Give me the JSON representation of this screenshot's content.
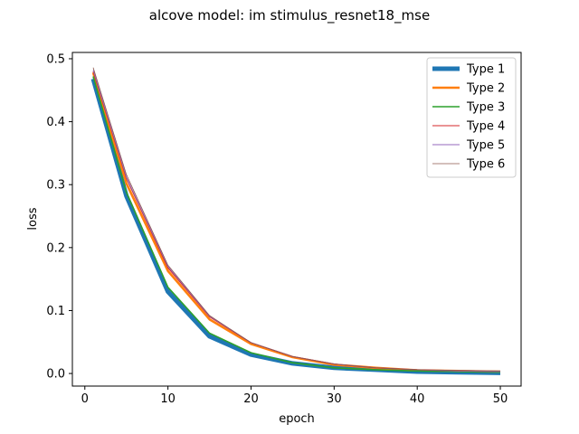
{
  "chart_data": {
    "type": "line",
    "title": "alcove model: im stimulus_resnet18_mse",
    "xlabel": "epoch",
    "ylabel": "loss",
    "xlim": [
      -1.5,
      52.5
    ],
    "ylim": [
      -0.02,
      0.51
    ],
    "xticks": [
      0,
      10,
      20,
      30,
      40,
      50
    ],
    "yticks": [
      0.0,
      0.1,
      0.2,
      0.3,
      0.4,
      0.5
    ],
    "grid": false,
    "legend_position": "top-right",
    "x": [
      1,
      5,
      10,
      15,
      20,
      25,
      30,
      35,
      40,
      45,
      50
    ],
    "series": [
      {
        "name": "Type 1",
        "color": "#1f77b4",
        "values": [
          0.468,
          0.282,
          0.13,
          0.059,
          0.03,
          0.016,
          0.009,
          0.006,
          0.003,
          0.002,
          0.001
        ]
      },
      {
        "name": "Type 2",
        "color": "#ff7f0e",
        "values": [
          0.478,
          0.302,
          0.163,
          0.086,
          0.047,
          0.026,
          0.014,
          0.009,
          0.005,
          0.004,
          0.003
        ]
      },
      {
        "name": "Type 3",
        "color": "#2ca02c",
        "values": [
          0.472,
          0.288,
          0.137,
          0.064,
          0.033,
          0.017,
          0.009,
          0.006,
          0.004,
          0.003,
          0.002
        ]
      },
      {
        "name": "Type 4",
        "color": "#d62728",
        "values": [
          0.48,
          0.31,
          0.168,
          0.09,
          0.049,
          0.027,
          0.015,
          0.009,
          0.006,
          0.004,
          0.003
        ]
      },
      {
        "name": "Type 5",
        "color": "#9467bd",
        "values": [
          0.482,
          0.312,
          0.17,
          0.091,
          0.049,
          0.027,
          0.015,
          0.009,
          0.006,
          0.004,
          0.003
        ]
      },
      {
        "name": "Type 6",
        "color": "#8c564b",
        "values": [
          0.486,
          0.316,
          0.172,
          0.092,
          0.049,
          0.027,
          0.015,
          0.009,
          0.006,
          0.005,
          0.004
        ]
      }
    ]
  }
}
